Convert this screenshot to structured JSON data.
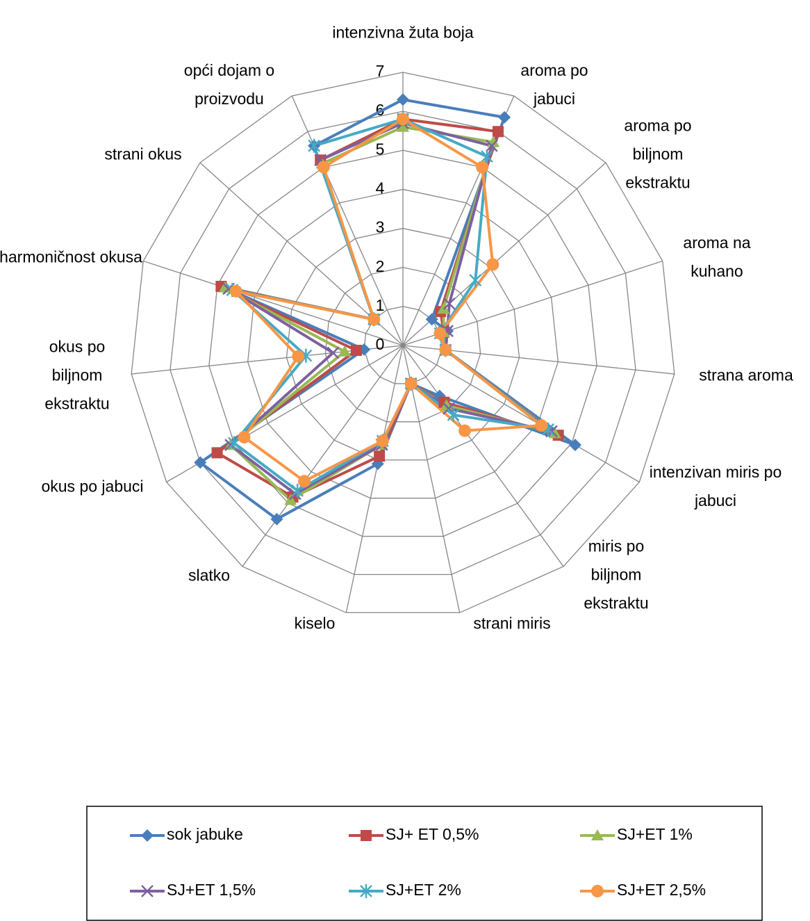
{
  "chart_data": {
    "type": "radar",
    "categories": [
      "intenzivna žuta boja",
      "aroma po jabuci",
      "aroma po biljnom ekstraktu",
      "aroma na kuhano",
      "strana aroma",
      "intenzivan miris po jabuci",
      "miris po biljnom ekstraktu",
      "strani miris",
      "kiselo",
      "slatko",
      "okus po jabuci",
      "okus po biljnom ekstraktu",
      "harmoničnost okusa",
      "strani okus",
      "opći dojam o proizvodu"
    ],
    "series": [
      {
        "name": "sok jabuke",
        "color": "#4a7ebb",
        "marker": "diamond",
        "values": [
          6.3,
          6.4,
          1.0,
          1.2,
          1.1,
          5.1,
          1.6,
          1.0,
          3.1,
          5.5,
          6.0,
          1.0,
          4.8,
          1.0,
          5.6
        ]
      },
      {
        "name": "SJ+ ET 0,5%",
        "color": "#be4b48",
        "marker": "square",
        "values": [
          5.8,
          6.0,
          1.3,
          1.1,
          1.1,
          4.6,
          1.8,
          1.0,
          2.9,
          4.8,
          5.5,
          1.2,
          4.9,
          1.0,
          5.2
        ]
      },
      {
        "name": "SJ+ET 1%",
        "color": "#98b954",
        "marker": "triangle",
        "values": [
          5.6,
          5.7,
          1.4,
          1.1,
          1.1,
          4.5,
          1.9,
          1.0,
          2.6,
          4.9,
          5.1,
          1.5,
          4.8,
          1.0,
          5.1
        ]
      },
      {
        "name": "SJ+ET 1,5%",
        "color": "#7d60a0",
        "marker": "x",
        "values": [
          5.7,
          5.6,
          1.6,
          1.2,
          1.1,
          4.4,
          2.0,
          1.0,
          2.6,
          4.7,
          5.1,
          1.8,
          4.7,
          1.0,
          5.2
        ]
      },
      {
        "name": "SJ+ET 2%",
        "color": "#46aac5",
        "marker": "star",
        "values": [
          5.8,
          5.3,
          2.5,
          1.0,
          1.1,
          4.3,
          2.2,
          1.0,
          2.5,
          4.6,
          5.0,
          2.5,
          4.6,
          1.0,
          5.6
        ]
      },
      {
        "name": "SJ+ET 2,5%",
        "color": "#f79646",
        "marker": "circle",
        "values": [
          5.8,
          5.0,
          3.1,
          1.0,
          1.1,
          4.1,
          2.7,
          1.0,
          2.5,
          4.3,
          4.7,
          2.7,
          4.5,
          1.0,
          5.0
        ]
      }
    ],
    "ylim": [
      0,
      7
    ],
    "yticks": [
      0,
      1,
      2,
      3,
      4,
      5,
      6,
      7
    ],
    "grid": true,
    "legend": "bottom"
  }
}
